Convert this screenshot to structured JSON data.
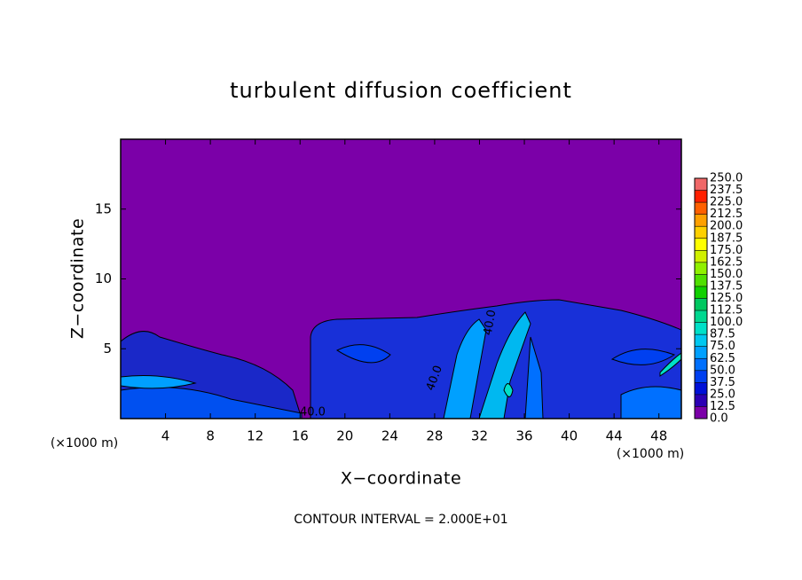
{
  "chart_data": {
    "type": "contour",
    "title": "turbulent diffusion coefficient",
    "x_label": "X−coordinate",
    "y_label": "Z−coordinate",
    "x_unit": "(×1000 m)",
    "x_unit_right": "(×1000 m)",
    "footer": "CONTOUR INTERVAL = 2.000E+01",
    "contour_labels": [
      "40.0",
      "40.0",
      "40.0"
    ],
    "xlim": [
      0,
      50
    ],
    "xticks": [
      4,
      8,
      12,
      16,
      20,
      24,
      28,
      32,
      36,
      40,
      44,
      48
    ],
    "ylim": [
      0,
      20
    ],
    "yticks": [
      5,
      10,
      15
    ],
    "colorbar": {
      "ticks": [
        {
          "value": 0,
          "label": "0.0"
        },
        12.5,
        {
          "value": 25,
          "label": "25.0"
        },
        37.5,
        {
          "value": 50,
          "label": "50.0"
        },
        62.5,
        {
          "value": 75,
          "label": "75.0"
        },
        87.5,
        {
          "value": 100,
          "label": "100.0"
        },
        112.5,
        {
          "value": 125,
          "label": "125.0"
        },
        137.5,
        {
          "value": 150,
          "label": "150.0"
        },
        162.5,
        {
          "value": 175,
          "label": "175.0"
        },
        187.5,
        {
          "value": 200,
          "label": "200.0"
        },
        212.5,
        {
          "value": 225,
          "label": "225.0"
        },
        237.5,
        {
          "value": 250,
          "label": "250.0"
        }
      ],
      "colors": [
        "#7b00a8",
        "#2c00b4",
        "#0010d8",
        "#0040f0",
        "#0070ff",
        "#00a0ff",
        "#00c8f0",
        "#00e0c8",
        "#00d890",
        "#00c860",
        "#10d000",
        "#50e000",
        "#90f000",
        "#d0f000",
        "#ffff00",
        "#ffd000",
        "#ffa000",
        "#ff6000",
        "#ff2000",
        "#f06868"
      ]
    }
  }
}
